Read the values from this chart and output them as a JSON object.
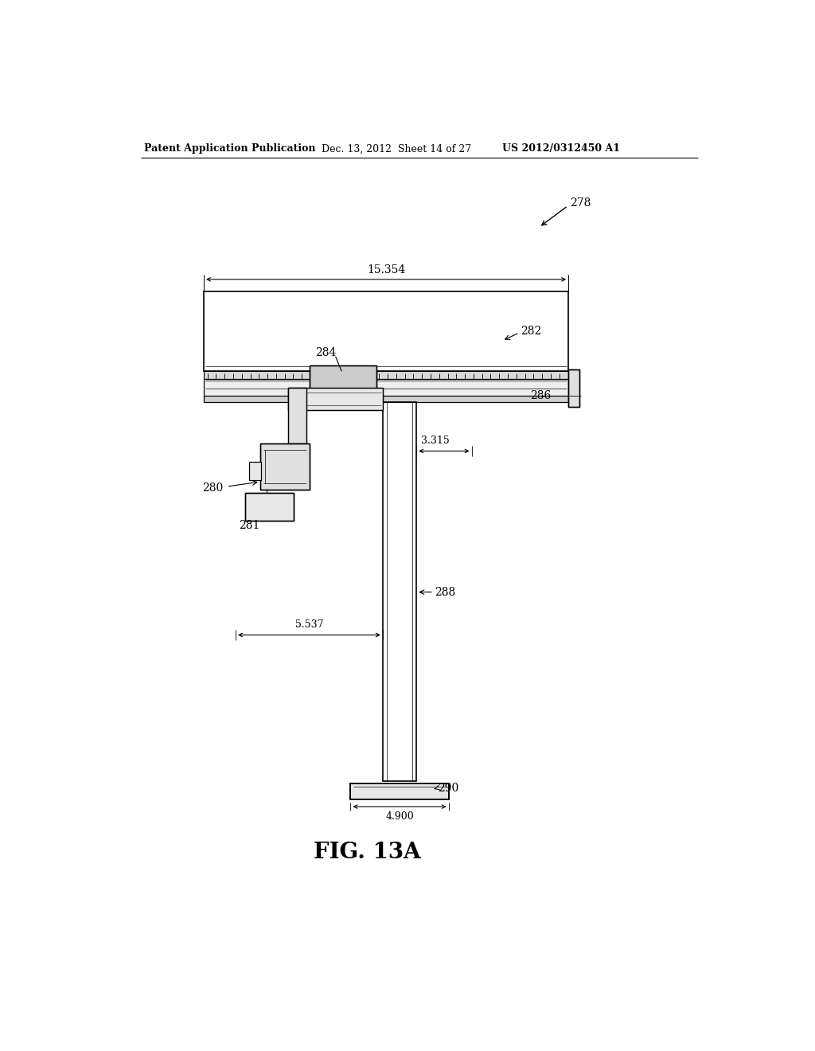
{
  "bg_color": "#ffffff",
  "header_left": "Patent Application Publication",
  "header_mid": "Dec. 13, 2012  Sheet 14 of 27",
  "header_right": "US 2012/0312450 A1",
  "fig_label": "FIG. 13A",
  "ref_278": "278",
  "ref_282": "282",
  "ref_284": "284",
  "ref_286": "286",
  "ref_280": "280",
  "ref_281": "281",
  "ref_288": "288",
  "ref_290": "290",
  "dim_width": "15.354",
  "dim_3315": "3.315",
  "dim_5537": "5.537",
  "dim_4900": "4.900",
  "line_color": "#000000",
  "lw": 1.0,
  "lw_thick": 1.5
}
